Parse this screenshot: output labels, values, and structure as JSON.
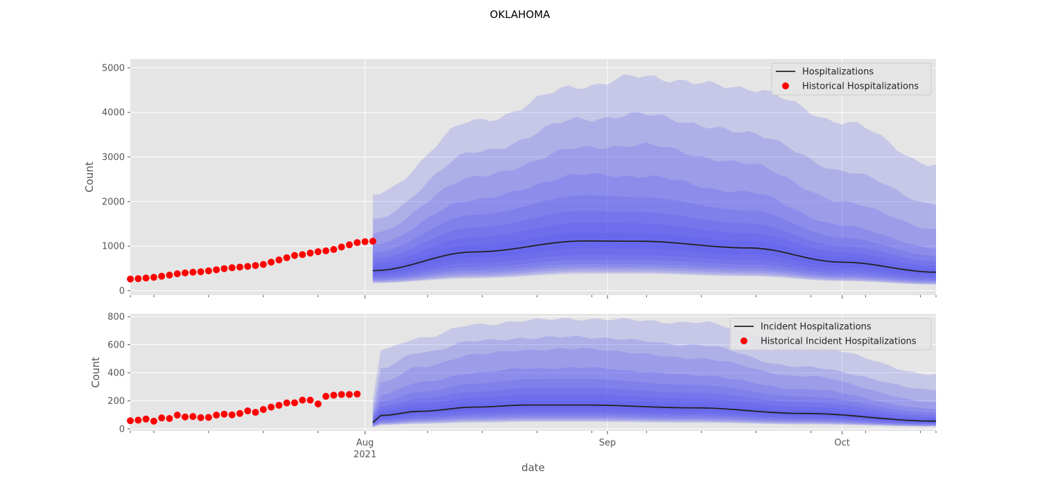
{
  "figure": {
    "title": "OKLAHOMA",
    "xlabel": "date"
  },
  "chart_data": [
    {
      "type": "area",
      "ylabel": "Count",
      "ylim": [
        -100,
        5200
      ],
      "yticks": [
        0,
        1000,
        2000,
        3000,
        4000,
        5000
      ],
      "grid": true,
      "legend": {
        "placement": "top-right",
        "entries": [
          {
            "label": "Hospitalizations",
            "kind": "line",
            "color": "#222222"
          },
          {
            "label": "Historical Hospitalizations",
            "kind": "marker",
            "color": "#ff0000"
          }
        ]
      },
      "historical": {
        "name": "Historical Hospitalizations",
        "color": "#ff0000",
        "start_date": "2021-07-02",
        "values": [
          262,
          270,
          285,
          300,
          325,
          350,
          380,
          400,
          415,
          425,
          445,
          470,
          495,
          515,
          530,
          545,
          565,
          590,
          640,
          690,
          740,
          790,
          810,
          845,
          875,
          895,
          925,
          980,
          1030,
          1080,
          1100,
          1110
        ]
      },
      "forecast": {
        "name": "Hospitalizations",
        "color": "#222222",
        "band_color": "#5050f0",
        "start_date": "2021-08-02",
        "end_date": "2021-10-13",
        "knot_dates": [
          "2021-08-02",
          "2021-08-15",
          "2021-08-29",
          "2021-09-05",
          "2021-09-19",
          "2021-10-01",
          "2021-10-13"
        ],
        "median": [
          450,
          870,
          1115,
          1110,
          960,
          640,
          415
        ],
        "bands": [
          {
            "lower": [
              380,
              740,
              950,
              945,
              815,
              540,
              350
            ],
            "upper": [
              530,
              1020,
              1300,
              1290,
              1110,
              740,
              480
            ]
          },
          {
            "lower": [
              330,
              620,
              800,
              795,
              690,
              460,
              300
            ],
            "upper": [
              620,
              1200,
              1530,
              1510,
              1290,
              860,
              560
            ]
          },
          {
            "lower": [
              290,
              530,
              690,
              685,
              590,
              390,
              255
            ],
            "upper": [
              720,
              1420,
              1790,
              1760,
              1510,
              1000,
              660
            ]
          },
          {
            "lower": [
              255,
              460,
              600,
              595,
              510,
              340,
              220
            ],
            "upper": [
              860,
              1700,
              2140,
              2100,
              1800,
              1190,
              780
            ]
          },
          {
            "lower": [
              230,
              400,
              530,
              525,
              450,
              300,
              195
            ],
            "upper": [
              1050,
              2050,
              2600,
              2570,
              2200,
              1460,
              950
            ]
          },
          {
            "lower": [
              205,
              350,
              470,
              465,
              400,
              265,
              170
            ],
            "upper": [
              1300,
              2550,
              3200,
              3270,
              2850,
              2000,
              1380
            ]
          },
          {
            "lower": [
              185,
              310,
              420,
              415,
              355,
              235,
              150
            ],
            "upper": [
              1600,
              3100,
              3850,
              3950,
              3550,
              2700,
              1950
            ]
          },
          {
            "lower": [
              170,
              280,
              380,
              380,
              325,
              215,
              135
            ],
            "upper": [
              2150,
              3800,
              4600,
              4800,
              4550,
              3800,
              2820
            ]
          }
        ]
      }
    },
    {
      "type": "area",
      "ylabel": "Count",
      "ylim": [
        -15,
        820
      ],
      "yticks": [
        0,
        200,
        400,
        600,
        800
      ],
      "grid": true,
      "legend": {
        "placement": "top-right",
        "entries": [
          {
            "label": "Incident Hospitalizations",
            "kind": "line",
            "color": "#222222"
          },
          {
            "label": "Historical Incident Hospitalizations",
            "kind": "marker",
            "color": "#ff0000"
          }
        ]
      },
      "historical": {
        "name": "Historical Incident Hospitalizations",
        "color": "#ff0000",
        "start_date": "2021-07-02",
        "values": [
          58,
          62,
          70,
          55,
          78,
          74,
          98,
          85,
          88,
          80,
          82,
          98,
          105,
          100,
          110,
          128,
          118,
          138,
          155,
          168,
          185,
          186,
          205,
          205,
          178,
          232,
          240,
          245,
          245,
          248
        ]
      },
      "forecast": {
        "name": "Incident Hospitalizations",
        "color": "#222222",
        "band_color": "#5050f0",
        "start_date": "2021-08-02",
        "end_date": "2021-10-13",
        "knot_dates": [
          "2021-08-02",
          "2021-08-03",
          "2021-08-08",
          "2021-08-15",
          "2021-08-22",
          "2021-08-29",
          "2021-09-12",
          "2021-09-26",
          "2021-10-13"
        ],
        "median": [
          45,
          95,
          125,
          155,
          170,
          170,
          150,
          110,
          55
        ],
        "bands": [
          {
            "lower": [
              38,
              80,
              105,
              130,
              143,
              143,
              126,
              92,
              46
            ],
            "upper": [
              55,
              115,
              150,
              185,
              205,
              205,
              180,
              132,
              66
            ]
          },
          {
            "lower": [
              33,
              68,
              90,
              112,
              123,
              123,
              108,
              79,
              40
            ],
            "upper": [
              62,
              135,
              180,
              222,
              245,
              245,
              215,
              158,
              79
            ]
          },
          {
            "lower": [
              28,
              58,
              78,
              97,
              107,
              107,
              94,
              69,
              34
            ],
            "upper": [
              70,
              160,
              215,
              265,
              292,
              293,
              258,
              190,
              95
            ]
          },
          {
            "lower": [
              24,
              50,
              67,
              84,
              92,
              92,
              81,
              59,
              30
            ],
            "upper": [
              80,
              195,
              262,
              322,
              355,
              356,
              313,
              230,
              115
            ]
          },
          {
            "lower": [
              20,
              43,
              58,
              72,
              79,
              79,
              70,
              51,
              26
            ],
            "upper": [
              95,
              245,
              330,
              400,
              432,
              435,
              385,
              283,
              142
            ]
          },
          {
            "lower": [
              17,
              37,
              50,
              62,
              68,
              68,
              60,
              44,
              22
            ],
            "upper": [
              115,
              330,
              440,
              530,
              565,
              570,
              505,
              375,
              190
            ]
          },
          {
            "lower": [
              14,
              31,
              42,
              53,
              58,
              58,
              51,
              37,
              19
            ],
            "upper": [
              140,
              430,
              545,
              625,
              650,
              655,
              600,
              440,
              280
            ]
          },
          {
            "lower": [
              12,
              27,
              36,
              45,
              50,
              50,
              44,
              32,
              16
            ],
            "upper": [
              210,
              560,
              650,
              740,
              775,
              785,
              760,
              600,
              390
            ]
          }
        ]
      }
    }
  ],
  "x_axis": {
    "range": [
      "2021-07-02",
      "2021-10-13"
    ],
    "major_ticks": [
      {
        "date": "2021-08-01",
        "label": "Aug",
        "sublabel": "2021"
      },
      {
        "date": "2021-09-01",
        "label": "Sep",
        "sublabel": ""
      },
      {
        "date": "2021-10-01",
        "label": "Oct",
        "sublabel": ""
      }
    ],
    "minor_ticks": [
      "2021-07-02",
      "2021-07-05",
      "2021-07-12",
      "2021-07-19",
      "2021-07-26",
      "2021-08-09",
      "2021-08-16",
      "2021-08-23",
      "2021-08-30",
      "2021-09-06",
      "2021-09-13",
      "2021-09-20",
      "2021-09-27",
      "2021-10-04",
      "2021-10-11",
      "2021-10-13"
    ]
  }
}
